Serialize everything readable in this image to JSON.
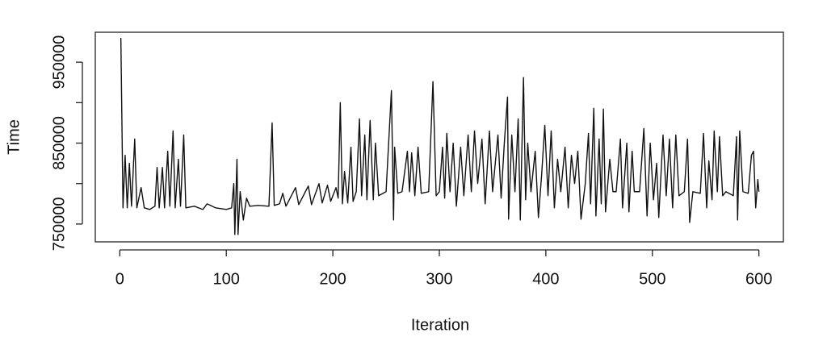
{
  "chart_data": {
    "type": "line",
    "x_label": "Iteration",
    "y_label": "Time",
    "x": [
      1,
      3,
      5,
      7,
      9,
      11,
      14,
      16,
      20,
      23,
      28,
      33,
      35,
      37,
      40,
      42,
      45,
      47,
      50,
      52,
      55,
      57,
      60,
      62,
      70,
      78,
      82,
      90,
      100,
      105,
      107,
      108,
      110,
      111,
      113,
      116,
      119,
      122,
      130,
      140,
      143,
      145,
      150,
      153,
      156,
      165,
      168,
      177,
      180,
      187,
      190,
      195,
      198,
      203,
      205,
      207,
      209,
      211,
      214,
      217,
      219,
      222,
      225,
      227,
      230,
      232,
      235,
      238,
      240,
      243,
      250,
      255,
      257,
      258,
      261,
      265,
      270,
      272,
      274,
      277,
      280,
      283,
      290,
      294,
      297,
      300,
      303,
      305,
      307,
      310,
      313,
      316,
      320,
      323,
      327,
      330,
      333,
      336,
      340,
      343,
      347,
      350,
      355,
      358,
      361,
      364,
      365,
      368,
      371,
      374,
      376,
      379,
      381,
      383,
      386,
      390,
      393,
      396,
      399,
      402,
      405,
      408,
      411,
      414,
      418,
      421,
      424,
      427,
      430,
      433,
      437,
      440,
      442,
      445,
      447,
      450,
      452,
      454,
      456,
      460,
      463,
      466,
      470,
      472,
      476,
      478,
      481,
      483,
      488,
      492,
      495,
      498,
      501,
      504,
      506,
      510,
      513,
      516,
      519,
      522,
      525,
      530,
      533,
      535,
      538,
      545,
      548,
      551,
      553,
      556,
      558,
      561,
      563,
      566,
      569,
      576,
      579,
      580,
      582,
      585,
      590,
      593,
      595,
      597,
      599,
      600
    ],
    "values": [
      980000,
      770000,
      835000,
      770000,
      825000,
      772000,
      855000,
      770000,
      795000,
      770000,
      768000,
      772000,
      820000,
      770000,
      820000,
      770000,
      840000,
      772000,
      865000,
      770000,
      830000,
      772000,
      860000,
      770000,
      772000,
      768000,
      775000,
      770000,
      768000,
      770000,
      800000,
      737000,
      830000,
      737000,
      790000,
      755000,
      782000,
      772000,
      773000,
      772000,
      875000,
      773000,
      775000,
      788000,
      772000,
      795000,
      774000,
      797000,
      774000,
      800000,
      776000,
      798000,
      778000,
      795000,
      782000,
      900000,
      775000,
      815000,
      776000,
      845000,
      778000,
      790000,
      880000,
      785000,
      860000,
      780000,
      878000,
      780000,
      850000,
      785000,
      790000,
      915000,
      755000,
      845000,
      788000,
      790000,
      840000,
      790000,
      838000,
      785000,
      845000,
      788000,
      790000,
      926000,
      785000,
      790000,
      845000,
      782000,
      862000,
      790000,
      850000,
      772000,
      845000,
      785000,
      860000,
      790000,
      865000,
      800000,
      855000,
      775000,
      865000,
      790000,
      860000,
      782000,
      850000,
      907000,
      756000,
      860000,
      790000,
      880000,
      755000,
      931000,
      780000,
      850000,
      790000,
      840000,
      758000,
      810000,
      872000,
      785000,
      865000,
      770000,
      830000,
      790000,
      845000,
      770000,
      835000,
      800000,
      840000,
      756000,
      800000,
      862000,
      775000,
      893000,
      760000,
      855000,
      775000,
      892000,
      765000,
      830000,
      790000,
      790000,
      855000,
      770000,
      850000,
      765000,
      840000,
      790000,
      790000,
      868000,
      760000,
      850000,
      780000,
      825000,
      758000,
      860000,
      785000,
      855000,
      770000,
      860000,
      785000,
      790000,
      855000,
      752000,
      790000,
      788000,
      862000,
      770000,
      828000,
      780000,
      865000,
      790000,
      858000,
      785000,
      790000,
      785000,
      858000,
      755000,
      865000,
      790000,
      788000,
      835000,
      840000,
      770000,
      805000,
      790000
    ],
    "color": "#111111",
    "xlim": [
      -23,
      623
    ],
    "ylim": [
      728000,
      987000
    ],
    "xticks": [
      0,
      100,
      200,
      300,
      400,
      500,
      600
    ],
    "yticks": [
      750000,
      850000,
      950000
    ],
    "y_unlabeled_ticks": [
      800000,
      900000
    ]
  }
}
